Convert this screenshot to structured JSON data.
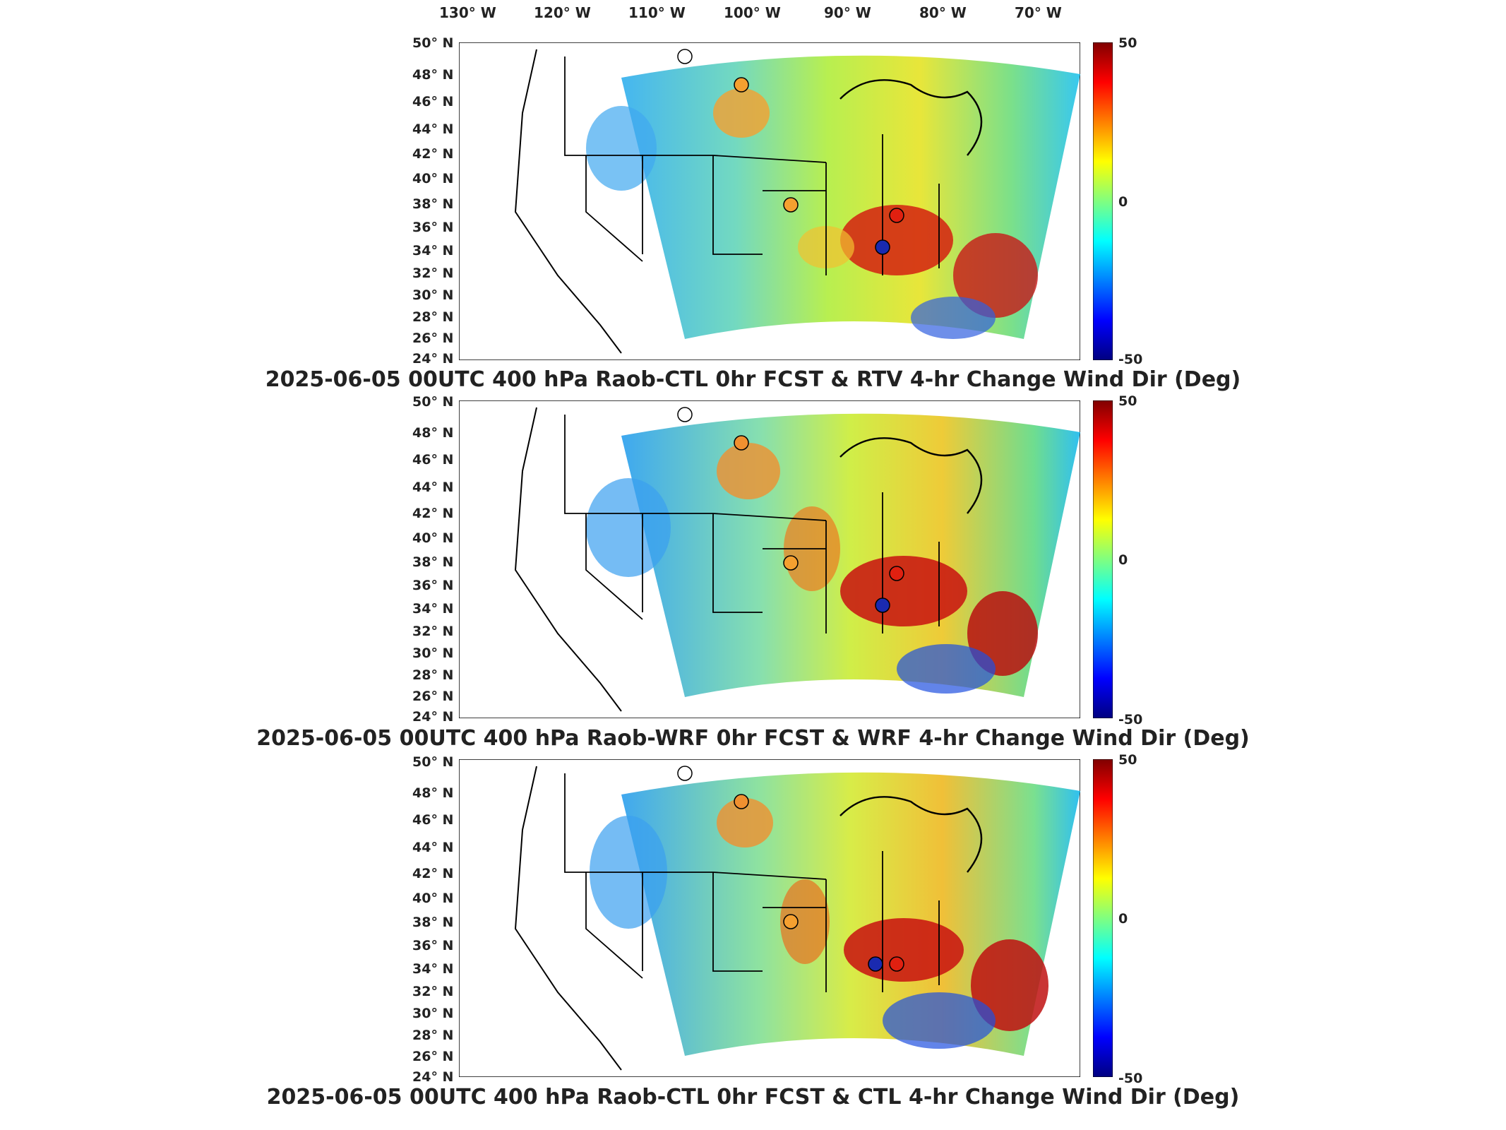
{
  "lon_labels": [
    "130° W",
    "120° W",
    "110° W",
    "100° W",
    "90° W",
    "80° W",
    "70° W"
  ],
  "lat_labels": [
    "50° N",
    "48° N",
    "46° N",
    "44° N",
    "42° N",
    "40° N",
    "38° N",
    "36° N",
    "34° N",
    "32° N",
    "30° N",
    "28° N",
    "26° N",
    "24° N"
  ],
  "colorbar": {
    "max": "50",
    "mid": "0",
    "min": "-50",
    "colormap": "jet"
  },
  "colors": {
    "frame": "#000000",
    "state_lines": "#000000"
  },
  "panels": [
    {
      "title": "2025-06-05 00UTC 400 hPa Raob-CTL 0hr FCST & RTV 4-hr Change Wind Dir (Deg)"
    },
    {
      "title": "2025-06-05 00UTC 400 hPa Raob-WRF 0hr FCST & WRF 4-hr Change Wind Dir (Deg)"
    },
    {
      "title": "2025-06-05 00UTC 400 hPa Raob-CTL 0hr FCST & CTL 4-hr Change Wind Dir (Deg)"
    }
  ]
}
